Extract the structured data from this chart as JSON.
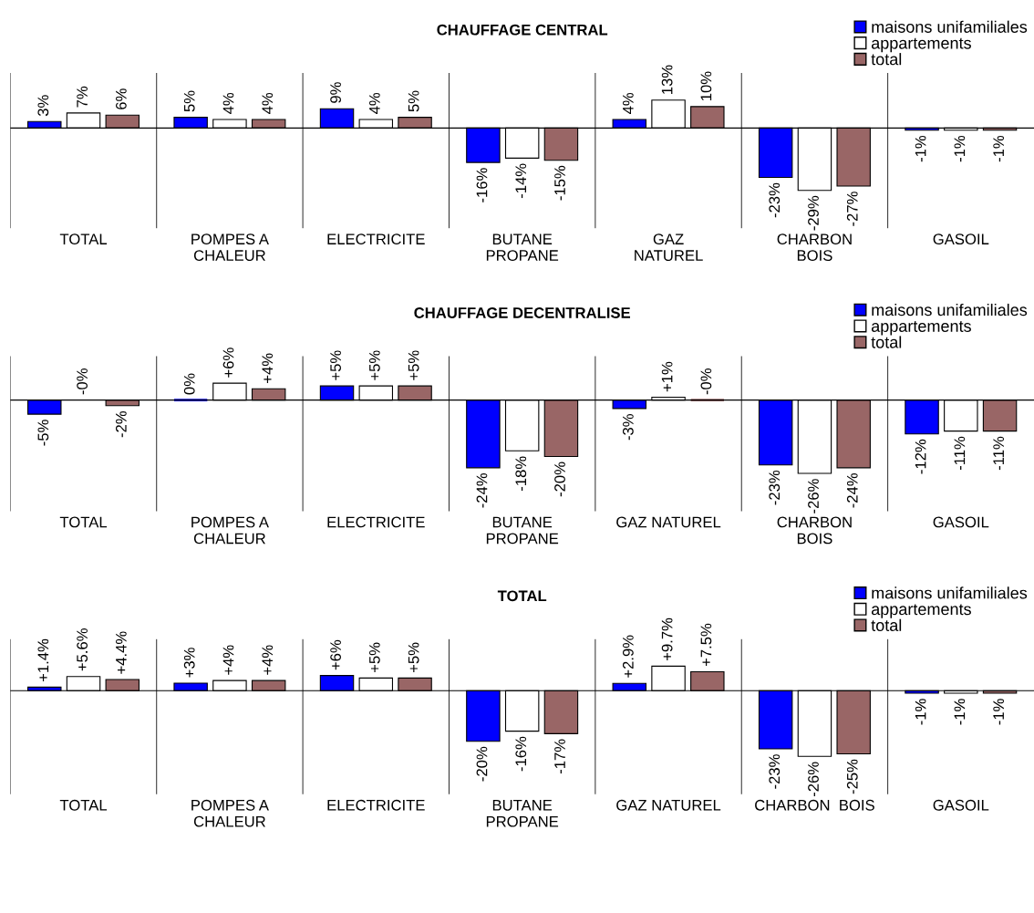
{
  "chart_data": [
    {
      "type": "bar",
      "title": "CHAUFFAGE CENTRAL",
      "categories": [
        "TOTAL",
        "POMPES A\nCHALEUR",
        "ELECTRICITE",
        "BUTANE\nPROPANE",
        "GAZ\nNATUREL",
        "CHARBON\nBOIS",
        "GASOIL"
      ],
      "legend": "top right",
      "grid": "x",
      "tick_labels": "x",
      "series": [
        {
          "name": "maisons unifamiliales",
          "color": "#0000ff",
          "values": [
            3,
            5,
            9,
            -16,
            4,
            -23,
            -1
          ],
          "value_labels": [
            "3%",
            "5%",
            "9%",
            "-16%",
            "4%",
            "-23%",
            "-1%"
          ]
        },
        {
          "name": "appartements",
          "color": "#ffffff",
          "values": [
            7,
            4,
            4,
            -14,
            13,
            -29,
            -1
          ],
          "value_labels": [
            "7%",
            "4%",
            "4%",
            "-14%",
            "13%",
            "-29%",
            "-1%"
          ]
        },
        {
          "name": "total",
          "color": "#996666",
          "values": [
            6,
            4,
            5,
            -15,
            10,
            -27,
            -1
          ],
          "value_labels": [
            "6%",
            "4%",
            "5%",
            "-15%",
            "10%",
            "-27%",
            "-1%"
          ]
        }
      ]
    },
    {
      "type": "bar",
      "title": "CHAUFFAGE DECENTRALISE",
      "categories": [
        "TOTAL",
        "POMPES A\nCHALEUR",
        "ELECTRICITE",
        "BUTANE\nPROPANE",
        "GAZ NATUREL",
        "CHARBON\nBOIS",
        "GASOIL"
      ],
      "legend": "top right",
      "grid": "x",
      "tick_labels": "x",
      "series": [
        {
          "name": "maisons unifamiliales",
          "color": "#0000ff",
          "values": [
            -5,
            0,
            5,
            -24,
            -3,
            -23,
            -12
          ],
          "value_labels": [
            "-5%",
            "0%",
            "+5%",
            "-24%",
            "-3%",
            "-23%",
            "-12%"
          ]
        },
        {
          "name": "appartements",
          "color": "#ffffff",
          "values": [
            0,
            6,
            5,
            -18,
            1,
            -26,
            -11
          ],
          "value_labels": [
            "-0%",
            "+6%",
            "+5%",
            "-18%",
            "+1%",
            "-26%",
            "-11%"
          ]
        },
        {
          "name": "total",
          "color": "#996666",
          "values": [
            -2,
            4,
            5,
            -20,
            0,
            -24,
            -11
          ],
          "value_labels": [
            "-2%",
            "+4%",
            "+5%",
            "-20%",
            "-0%",
            "-24%",
            "-11%"
          ]
        }
      ]
    },
    {
      "type": "bar",
      "title": "TOTAL",
      "categories": [
        "TOTAL",
        "POMPES A\nCHALEUR",
        "ELECTRICITE",
        "BUTANE\nPROPANE",
        "GAZ NATUREL",
        "CHARBON  BOIS",
        "GASOIL"
      ],
      "legend": "top right",
      "grid": "x",
      "tick_labels": "x",
      "series": [
        {
          "name": "maisons unifamiliales",
          "color": "#0000ff",
          "values": [
            1.4,
            3,
            6,
            -20,
            2.9,
            -23,
            -1
          ],
          "value_labels": [
            "+1.4%",
            "+3%",
            "+6%",
            "-20%",
            "+2.9%",
            "-23%",
            "-1%"
          ]
        },
        {
          "name": "appartements",
          "color": "#ffffff",
          "values": [
            5.6,
            4,
            5,
            -16,
            9.7,
            -26,
            -1
          ],
          "value_labels": [
            "+5.6%",
            "+4%",
            "+5%",
            "-16%",
            "+9.7%",
            "-26%",
            "-1%"
          ]
        },
        {
          "name": "total",
          "color": "#996666",
          "values": [
            4.4,
            4,
            5,
            -17,
            7.5,
            -25,
            -1
          ],
          "value_labels": [
            "+4.4%",
            "+4%",
            "+5%",
            "-17%",
            "+7.5%",
            "-25%",
            "-1%"
          ]
        }
      ]
    }
  ]
}
